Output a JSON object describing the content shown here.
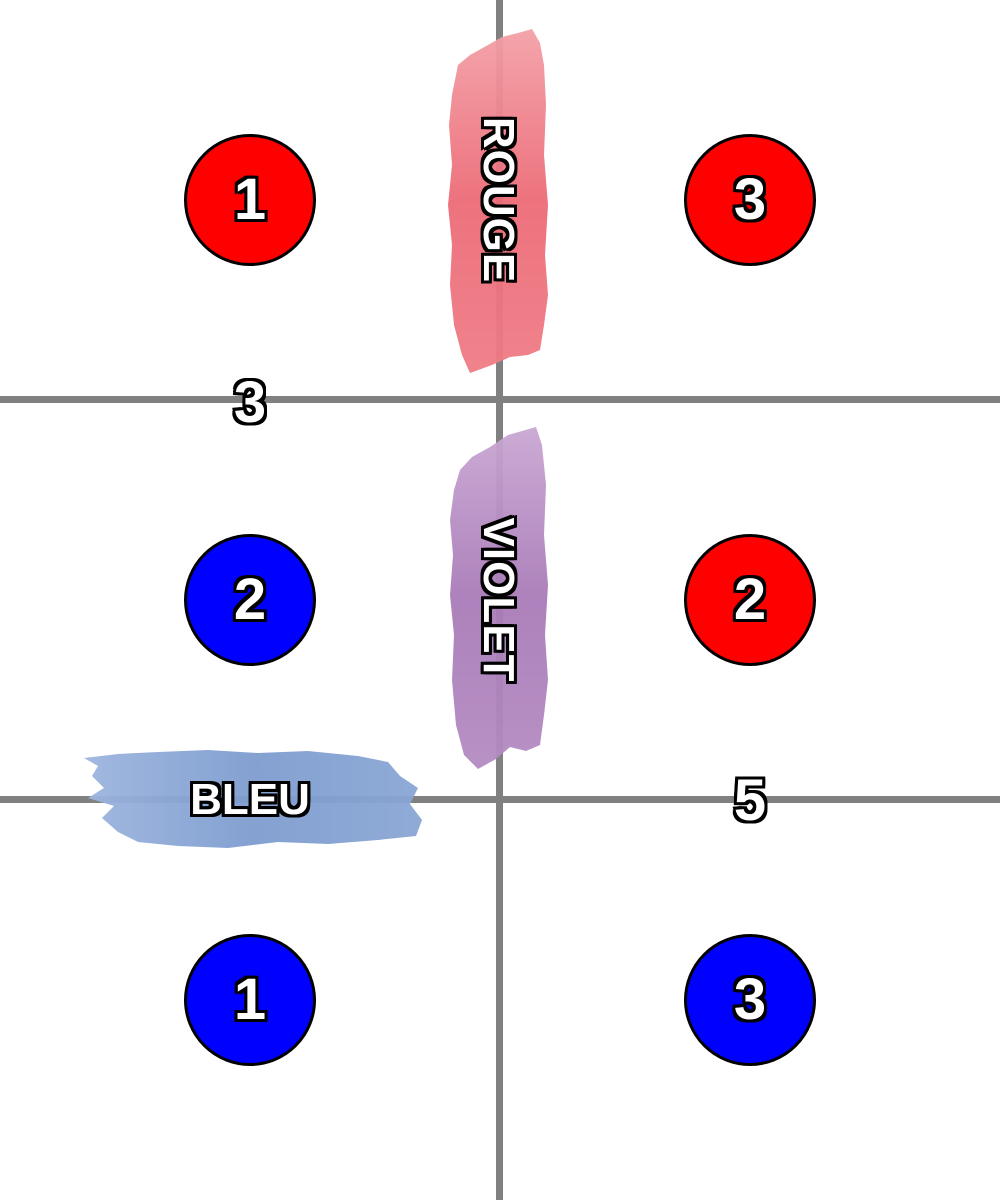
{
  "colors": {
    "background": "#ffffff",
    "grid": "#808080",
    "red_token": "#ff0000",
    "blue_token": "#0000ff",
    "rouge_brush": "#ee6f7a",
    "violet_brush": "#b17fbd",
    "bleu_brush": "#7f9fd0"
  },
  "zones": {
    "rouge": "ROUGE",
    "violet": "VIOLET",
    "bleu": "BLEU"
  },
  "tokens": [
    {
      "id": "r1",
      "color": "red",
      "number": "1"
    },
    {
      "id": "r3",
      "color": "red",
      "number": "3"
    },
    {
      "id": "b2",
      "color": "blue",
      "number": "2"
    },
    {
      "id": "r2",
      "color": "red",
      "number": "2"
    },
    {
      "id": "b1",
      "color": "blue",
      "number": "1"
    },
    {
      "id": "b3",
      "color": "blue",
      "number": "3"
    }
  ],
  "scores": {
    "left_edge": "3",
    "right_edge": "5"
  }
}
